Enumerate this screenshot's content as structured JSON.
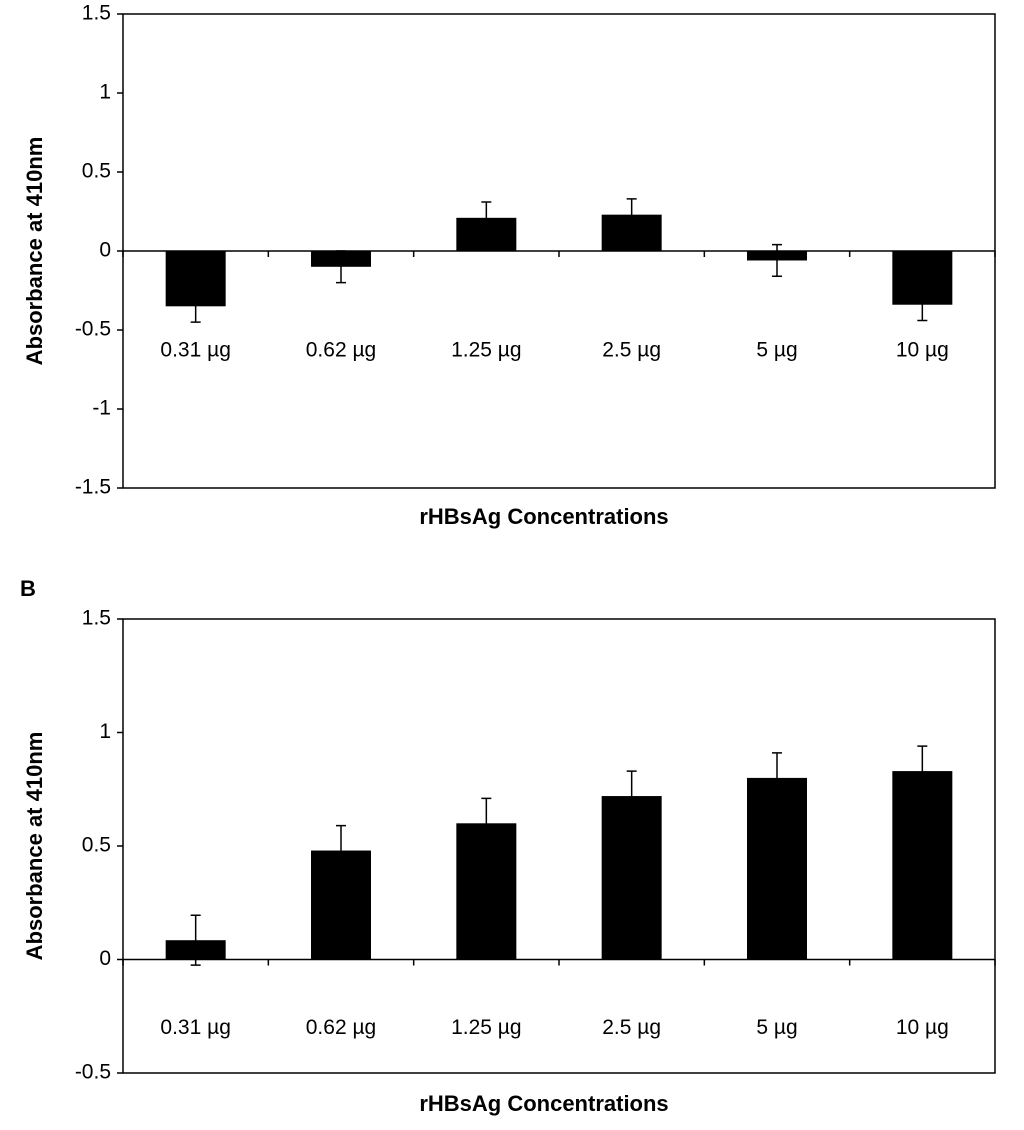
{
  "chart_data": [
    {
      "type": "bar",
      "y_label": "Absorbance at 410nm",
      "x_label": "rHBsAg Concentrations",
      "categories": [
        "0.31 µg",
        "0.62 µg",
        "1.25 µg",
        "2.5 µg",
        "5 µg",
        "10 µg"
      ],
      "values": [
        -0.35,
        -0.1,
        0.21,
        0.23,
        -0.06,
        -0.34
      ],
      "errors": [
        0.1,
        0.1,
        0.1,
        0.1,
        0.1,
        0.1
      ],
      "color": "#000000",
      "ylim": [
        -1.5,
        1.5
      ],
      "yticks": [
        1.5,
        1,
        0.5,
        0,
        -0.5,
        -1,
        -1.5
      ]
    },
    {
      "type": "bar",
      "panel_label": "B",
      "y_label": "Absorbance at 410nm",
      "x_label": "rHBsAg Concentrations",
      "categories": [
        "0.31 µg",
        "0.62 µg",
        "1.25 µg",
        "2.5 µg",
        "5 µg",
        "10 µg"
      ],
      "values": [
        0.085,
        0.48,
        0.6,
        0.72,
        0.8,
        0.83
      ],
      "errors": [
        0.11,
        0.11,
        0.11,
        0.11,
        0.11,
        0.11
      ],
      "color": "#000000",
      "ylim": [
        -0.5,
        1.5
      ],
      "yticks": [
        1.5,
        1,
        0.5,
        0,
        -0.5
      ]
    }
  ]
}
